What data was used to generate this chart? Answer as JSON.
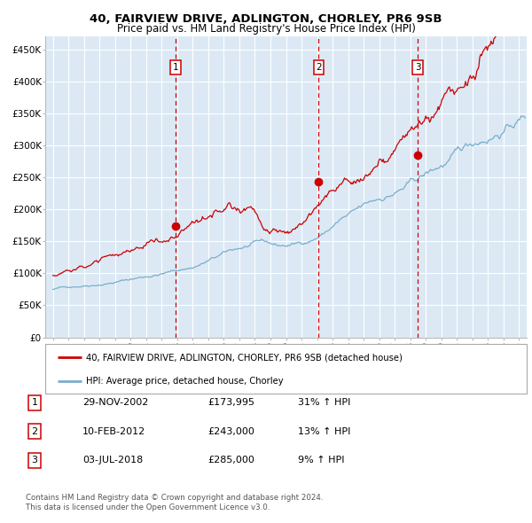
{
  "title": "40, FAIRVIEW DRIVE, ADLINGTON, CHORLEY, PR6 9SB",
  "subtitle": "Price paid vs. HM Land Registry's House Price Index (HPI)",
  "legend_line1": "40, FAIRVIEW DRIVE, ADLINGTON, CHORLEY, PR6 9SB (detached house)",
  "legend_line2": "HPI: Average price, detached house, Chorley",
  "footer1": "Contains HM Land Registry data © Crown copyright and database right 2024.",
  "footer2": "This data is licensed under the Open Government Licence v3.0.",
  "transactions": [
    {
      "num": 1,
      "date": "29-NOV-2002",
      "price": 173995,
      "pct": "31%",
      "dir": "↑"
    },
    {
      "num": 2,
      "date": "10-FEB-2012",
      "price": 243000,
      "pct": "13%",
      "dir": "↑"
    },
    {
      "num": 3,
      "date": "03-JUL-2018",
      "price": 285000,
      "pct": "9%",
      "dir": "↑"
    }
  ],
  "transaction_dates_decimal": [
    2002.91,
    2012.11,
    2018.5
  ],
  "transaction_prices": [
    173995,
    243000,
    285000
  ],
  "ylim": [
    0,
    470000
  ],
  "yticks": [
    0,
    50000,
    100000,
    150000,
    200000,
    250000,
    300000,
    350000,
    400000,
    450000
  ],
  "ytick_labels": [
    "£0",
    "£50K",
    "£100K",
    "£150K",
    "£200K",
    "£250K",
    "£300K",
    "£350K",
    "£400K",
    "£450K"
  ],
  "xlim_start": 1994.5,
  "xlim_end": 2025.5,
  "background_color": "#dce9f5",
  "red_line_color": "#cc0000",
  "blue_line_color": "#7aaecb",
  "vline_color": "#cc0000",
  "grid_color": "#ffffff",
  "title_fontsize": 9.5,
  "subtitle_fontsize": 8.5,
  "seed": 42
}
